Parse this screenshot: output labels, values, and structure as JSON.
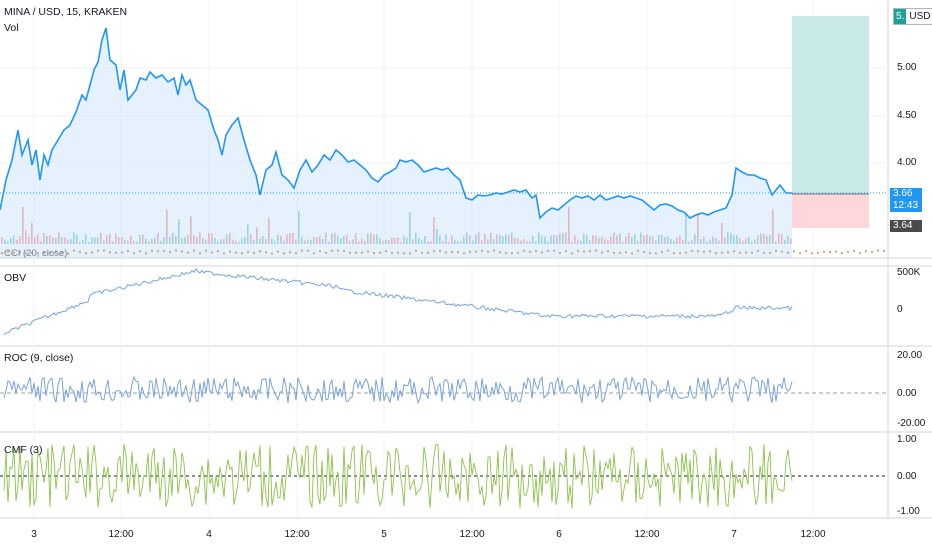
{
  "header": {
    "symbol_title": "MINA / USD, 15, KRAKEN",
    "vol_label": "Vol",
    "currency_badge": "USD",
    "currency_chip": "5."
  },
  "price_axis": {
    "ticks": [
      "5.00",
      "4.50",
      "4.00"
    ],
    "last_price": "3.66",
    "countdown": "12:43",
    "stop_price": "3.64"
  },
  "panes": {
    "cci_label": "CCI (20, close)",
    "obv_label": "OBV",
    "obv_ticks": [
      "500K",
      "0"
    ],
    "roc_label": "ROC (9, close)",
    "roc_ticks": [
      "20.00",
      "0.00",
      "-20.00"
    ],
    "cmf_label": "CMF (3)",
    "cmf_ticks": [
      "1.00",
      "0.00",
      "-1.00"
    ]
  },
  "time_axis": {
    "labels": [
      "3",
      "12:00",
      "4",
      "12:00",
      "5",
      "12:00",
      "6",
      "12:00",
      "7",
      "12:00"
    ]
  },
  "colors": {
    "price_line": "#2196f3",
    "area_fill": "#cfe6fb",
    "volume_up": "#26a69a",
    "volume_down": "#ef5350",
    "indicator_line": "#7aa3d8",
    "cmf_line": "#8bc34a",
    "target_zone": "#b2dfdb",
    "stop_zone": "#ffcdd2",
    "badge_blue": "#2196f3",
    "badge_dark": "#4a4a4a"
  }
}
